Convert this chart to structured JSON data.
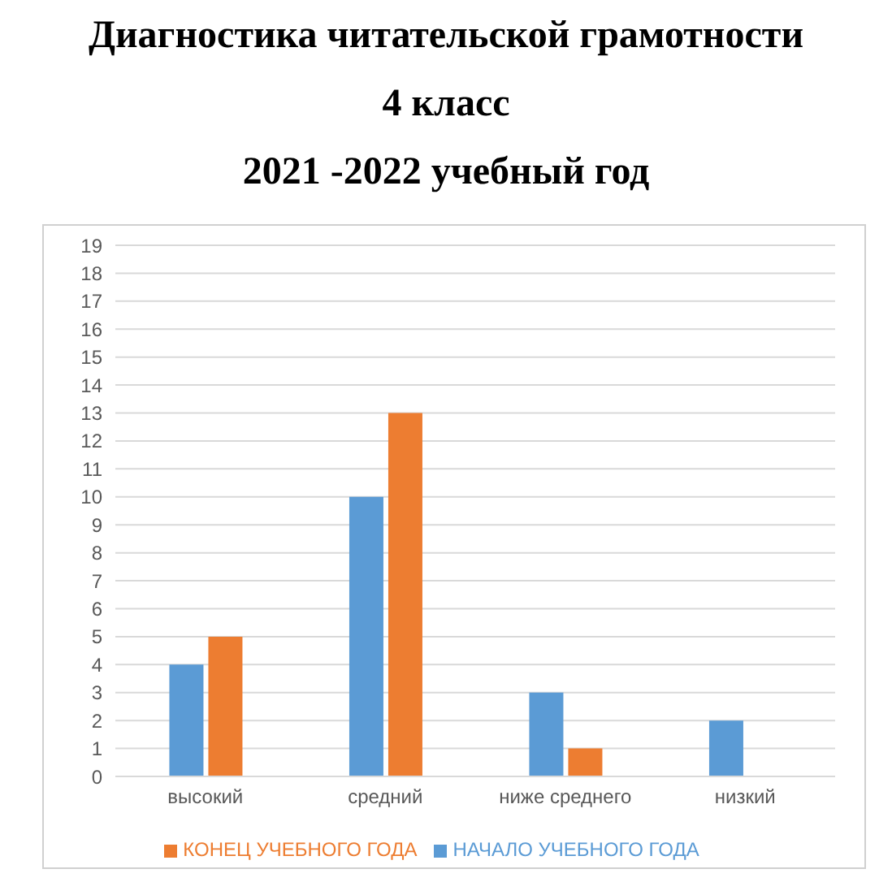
{
  "chart_data": {
    "type": "bar",
    "title": "Диагностика читательской грамотности",
    "subtitle": "4 класс\n2021 -2022 учебный год",
    "categories": [
      "высокий",
      "средний",
      "ниже среднего",
      "низкий"
    ],
    "series": [
      {
        "name": "НАЧАЛО УЧЕБНОГО ГОДА",
        "color": "#5b9bd5",
        "values": [
          4,
          10,
          3,
          2
        ]
      },
      {
        "name": "КОНЕЦ УЧЕБНОГО ГОДА",
        "color": "#ed7d31",
        "values": [
          5,
          13,
          1,
          0
        ]
      }
    ],
    "ylim": [
      0,
      19
    ],
    "yticks": [
      0,
      1,
      2,
      3,
      4,
      5,
      6,
      7,
      8,
      9,
      10,
      11,
      12,
      13,
      14,
      15,
      16,
      17,
      18,
      19
    ],
    "grid": "y",
    "legend": "bottom"
  }
}
